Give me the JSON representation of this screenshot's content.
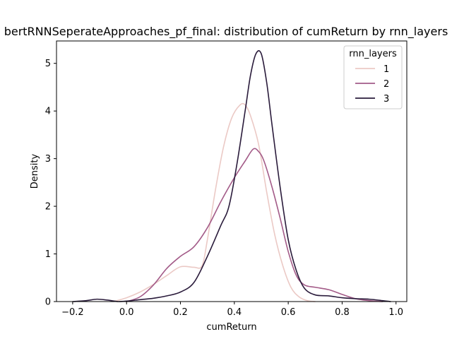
{
  "chart_data": {
    "type": "line",
    "title": "bertRNNSeperateApproaches_pf_final: distribution of cumReturn by rnn_layers",
    "xlabel": "cumReturn",
    "ylabel": "Density",
    "xlim": [
      -0.26,
      1.04
    ],
    "ylim": [
      0,
      5.47
    ],
    "xticks": [
      -0.2,
      0.0,
      0.2,
      0.4,
      0.6,
      0.8,
      1.0
    ],
    "xtick_labels": [
      "−0.2",
      "0.0",
      "0.2",
      "0.4",
      "0.6",
      "0.8",
      "1.0"
    ],
    "yticks": [
      0,
      1,
      2,
      3,
      4,
      5
    ],
    "ytick_labels": [
      "0",
      "1",
      "2",
      "3",
      "4",
      "5"
    ],
    "grid": false,
    "legend": {
      "title": "rnn_layers",
      "placement": "top-right"
    },
    "series": [
      {
        "name": "1",
        "color": "#ebc9c5",
        "points": [
          [
            -0.05,
            0.0
          ],
          [
            0.0,
            0.08
          ],
          [
            0.05,
            0.2
          ],
          [
            0.1,
            0.36
          ],
          [
            0.15,
            0.55
          ],
          [
            0.2,
            0.73
          ],
          [
            0.25,
            0.72
          ],
          [
            0.28,
            0.75
          ],
          [
            0.3,
            1.3
          ],
          [
            0.33,
            2.35
          ],
          [
            0.36,
            3.25
          ],
          [
            0.39,
            3.85
          ],
          [
            0.42,
            4.12
          ],
          [
            0.44,
            4.13
          ],
          [
            0.46,
            3.9
          ],
          [
            0.49,
            3.3
          ],
          [
            0.52,
            2.3
          ],
          [
            0.55,
            1.4
          ],
          [
            0.58,
            0.75
          ],
          [
            0.61,
            0.3
          ],
          [
            0.64,
            0.1
          ],
          [
            0.67,
            0.02
          ],
          [
            0.7,
            0.0
          ]
        ]
      },
      {
        "name": "2",
        "color": "#a35b88",
        "points": [
          [
            0.0,
            0.0
          ],
          [
            0.05,
            0.1
          ],
          [
            0.1,
            0.35
          ],
          [
            0.15,
            0.7
          ],
          [
            0.2,
            0.95
          ],
          [
            0.25,
            1.15
          ],
          [
            0.3,
            1.55
          ],
          [
            0.35,
            2.1
          ],
          [
            0.4,
            2.6
          ],
          [
            0.44,
            2.95
          ],
          [
            0.47,
            3.2
          ],
          [
            0.49,
            3.15
          ],
          [
            0.51,
            2.95
          ],
          [
            0.54,
            2.4
          ],
          [
            0.57,
            1.75
          ],
          [
            0.6,
            1.05
          ],
          [
            0.63,
            0.55
          ],
          [
            0.66,
            0.35
          ],
          [
            0.7,
            0.3
          ],
          [
            0.75,
            0.25
          ],
          [
            0.8,
            0.15
          ],
          [
            0.85,
            0.06
          ],
          [
            0.9,
            0.02
          ],
          [
            0.95,
            0.0
          ]
        ]
      },
      {
        "name": "3",
        "color": "#2a1b3b",
        "points": [
          [
            -0.2,
            0.0
          ],
          [
            -0.15,
            0.02
          ],
          [
            -0.11,
            0.05
          ],
          [
            -0.07,
            0.03
          ],
          [
            -0.03,
            0.0
          ],
          [
            0.0,
            0.01
          ],
          [
            0.05,
            0.04
          ],
          [
            0.1,
            0.07
          ],
          [
            0.15,
            0.12
          ],
          [
            0.2,
            0.2
          ],
          [
            0.25,
            0.4
          ],
          [
            0.3,
            0.95
          ],
          [
            0.35,
            1.6
          ],
          [
            0.38,
            2.0
          ],
          [
            0.41,
            2.9
          ],
          [
            0.44,
            4.0
          ],
          [
            0.46,
            4.75
          ],
          [
            0.48,
            5.2
          ],
          [
            0.5,
            5.2
          ],
          [
            0.52,
            4.6
          ],
          [
            0.54,
            3.7
          ],
          [
            0.57,
            2.4
          ],
          [
            0.6,
            1.3
          ],
          [
            0.63,
            0.65
          ],
          [
            0.66,
            0.28
          ],
          [
            0.7,
            0.14
          ],
          [
            0.75,
            0.12
          ],
          [
            0.8,
            0.08
          ],
          [
            0.85,
            0.06
          ],
          [
            0.9,
            0.05
          ],
          [
            0.95,
            0.02
          ],
          [
            0.98,
            0.0
          ]
        ]
      }
    ]
  }
}
